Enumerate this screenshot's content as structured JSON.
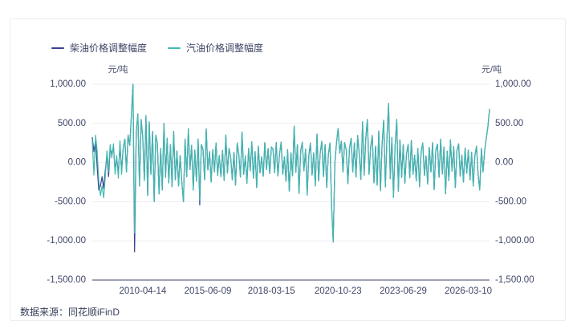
{
  "card": {
    "source_label": "数据来源：同花顺iFinD"
  },
  "legend": [
    {
      "label": "柴油价格调整幅度",
      "color": "#3a4190"
    },
    {
      "label": "汽油价格调整幅度",
      "color": "#3fb9af"
    }
  ],
  "chart_data": {
    "type": "line",
    "title": "",
    "unit_left": "元/吨",
    "unit_right": "元/吨",
    "ylabel": "元/吨",
    "ylim": [
      -1500,
      1000
    ],
    "grid": true,
    "legend_position": "top-left",
    "yticks": [
      1000,
      500,
      0,
      -500,
      -1000,
      -1500
    ],
    "ytick_labels": [
      "1,000.00",
      "500.00",
      "0.00",
      "-500.00",
      "-1,000.00",
      "-1,500.00"
    ],
    "xtick_labels": [
      "2010-04-14",
      "2015-06-09",
      "2018-03-15",
      "2020-10-23",
      "2023-06-29",
      "2026-03-10"
    ],
    "xtick_indices": [
      31,
      71,
      110,
      151,
      191,
      231
    ],
    "colors": {
      "diesel": "#3a4190",
      "gasoline": "#3fb9af",
      "gridline": "#ededf2",
      "axis": "#3f4566",
      "text": "#3f4566"
    },
    "series": [
      {
        "name": "柴油价格调整幅度",
        "color": "#3a4190",
        "values": [
          320,
          140,
          280,
          -60,
          -350,
          -300,
          -180,
          -330,
          -100,
          90,
          -180,
          180,
          110,
          200,
          -90,
          50,
          -130,
          230,
          -110,
          180,
          300,
          -120,
          350,
          220,
          600,
          1000,
          -1140,
          400,
          620,
          -300,
          550,
          320,
          -230,
          600,
          -420,
          520,
          -150,
          400,
          -500,
          350,
          250,
          -400,
          180,
          -350,
          500,
          -190,
          310,
          -260,
          230,
          -310,
          400,
          -220,
          150,
          -300,
          90,
          -250,
          -500,
          300,
          -180,
          430,
          -90,
          220,
          -350,
          160,
          -240,
          300,
          -540,
          230,
          165,
          -220,
          430,
          -95,
          140,
          -250,
          165,
          -120,
          250,
          -165,
          90,
          -180,
          155,
          -230,
          350,
          -135,
          180,
          75,
          -220,
          130,
          -290,
          250,
          105,
          -185,
          390,
          -150,
          85,
          -265,
          180,
          -105,
          265,
          -200,
          140,
          -320,
          210,
          -130,
          75,
          -175,
          255,
          -90,
          180,
          -140,
          200,
          170,
          -130,
          255,
          -170,
          105,
          260,
          -150,
          75,
          -240,
          165,
          -365,
          125,
          -170,
          465,
          -125,
          230,
          -395,
          150,
          260,
          -105,
          170,
          -415,
          90,
          250,
          -160,
          125,
          -300,
          365,
          -235,
          120,
          270,
          -180,
          230,
          -320,
          110,
          250,
          -550,
          -1015,
          0,
          250,
          435,
          120,
          275,
          -120,
          255,
          160,
          -270,
          185,
          310,
          -120,
          250,
          -185,
          345,
          105,
          -215,
          520,
          -160,
          310,
          550,
          -150,
          205,
          345,
          -260,
          210,
          -290,
          405,
          -360,
          230,
          540,
          -310,
          320,
          755,
          -205,
          320,
          -445,
          205,
          550,
          -365,
          290,
          -190,
          230,
          -265,
          110,
          230,
          -195,
          285,
          -150,
          95,
          -235,
          180,
          -310,
          140,
          250,
          -165,
          85,
          -275,
          195,
          -120,
          255,
          -345,
          160,
          235,
          -190,
          300,
          -145,
          200,
          -400,
          145,
          -230,
          290,
          -110,
          205,
          -320,
          155,
          240,
          -175,
          95,
          -250,
          185,
          -135,
          160,
          -220,
          130,
          -300,
          85,
          210,
          -155,
          -350,
          180,
          -120,
          150,
          305,
          460,
          680
        ]
      },
      {
        "name": "汽油价格调整幅度",
        "color": "#3fb9af",
        "values": [
          290,
          -160,
          350,
          140,
          -230,
          -420,
          -300,
          -450,
          -180,
          150,
          -120,
          230,
          60,
          240,
          -150,
          90,
          -200,
          280,
          -150,
          180,
          300,
          -120,
          350,
          220,
          600,
          1000,
          -900,
          400,
          620,
          -300,
          550,
          320,
          -230,
          600,
          -420,
          520,
          -150,
          400,
          -500,
          350,
          250,
          -400,
          180,
          -350,
          500,
          -190,
          310,
          -260,
          230,
          -310,
          400,
          -220,
          150,
          -300,
          90,
          -250,
          -500,
          300,
          -180,
          430,
          -90,
          220,
          -350,
          160,
          -240,
          300,
          -480,
          230,
          165,
          -220,
          430,
          -95,
          140,
          -250,
          165,
          -120,
          250,
          -165,
          90,
          -180,
          155,
          -230,
          350,
          -135,
          180,
          75,
          -220,
          130,
          -290,
          250,
          105,
          -185,
          390,
          -150,
          85,
          -265,
          180,
          -105,
          265,
          -200,
          140,
          -320,
          210,
          -130,
          75,
          -175,
          255,
          -90,
          180,
          -140,
          200,
          170,
          -130,
          255,
          -170,
          105,
          260,
          -150,
          75,
          -240,
          165,
          -365,
          125,
          -170,
          465,
          -125,
          230,
          -395,
          150,
          260,
          -105,
          170,
          -415,
          90,
          250,
          -160,
          125,
          -300,
          365,
          -235,
          120,
          270,
          -180,
          230,
          -320,
          110,
          250,
          -550,
          -1015,
          0,
          250,
          435,
          120,
          275,
          -120,
          255,
          160,
          -270,
          185,
          310,
          -120,
          250,
          -185,
          345,
          105,
          -215,
          520,
          -160,
          310,
          550,
          -150,
          205,
          345,
          -260,
          210,
          -290,
          405,
          -360,
          230,
          540,
          -310,
          320,
          755,
          -205,
          320,
          -445,
          205,
          550,
          -365,
          290,
          -190,
          230,
          -265,
          110,
          230,
          -195,
          285,
          -150,
          95,
          -235,
          180,
          -310,
          140,
          250,
          -165,
          85,
          -275,
          195,
          -120,
          255,
          -345,
          160,
          235,
          -190,
          300,
          -145,
          200,
          -400,
          145,
          -230,
          290,
          -110,
          205,
          -320,
          155,
          240,
          -175,
          95,
          -250,
          185,
          -135,
          160,
          -220,
          130,
          -300,
          85,
          210,
          -155,
          -350,
          180,
          -120,
          150,
          305,
          460,
          680
        ]
      }
    ]
  }
}
